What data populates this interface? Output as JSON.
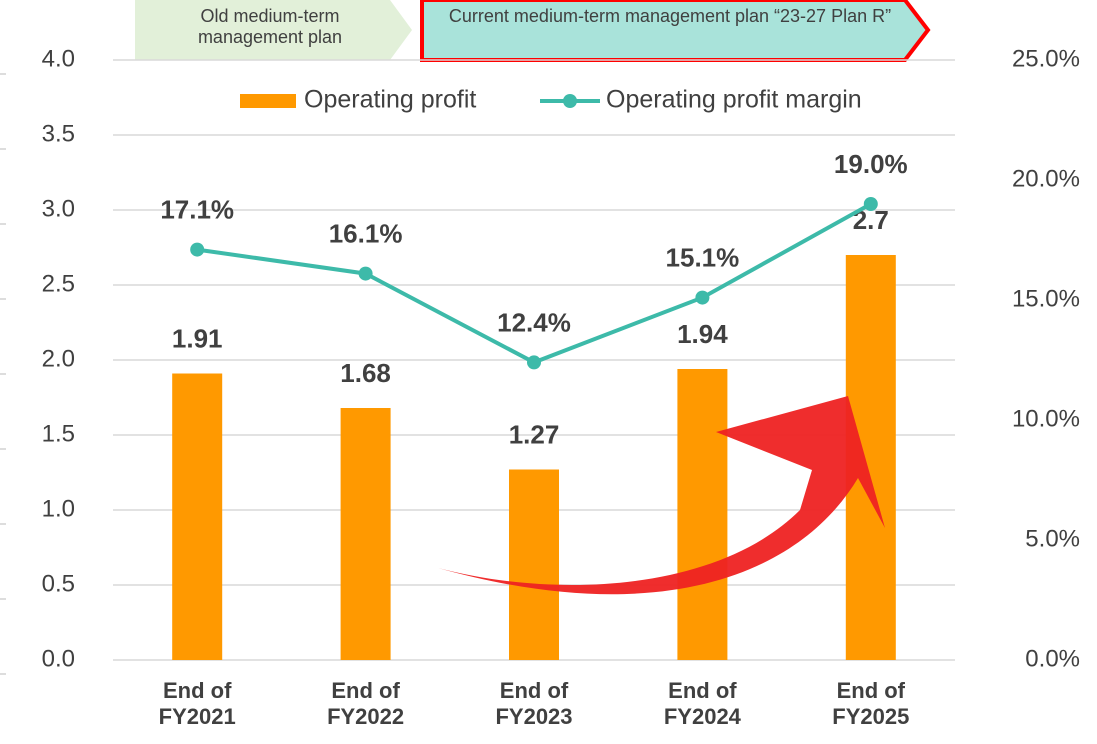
{
  "chart_data": {
    "type": "combo",
    "annotations": [
      "Old medium-term management plan",
      "Current medium-term management plan “23-27 Plan R”"
    ],
    "categories": [
      "End of FY2021",
      "End of FY2022",
      "End of FY2023",
      "End of FY2024",
      "End of FY2025"
    ],
    "series": [
      {
        "name": "Operating profit",
        "type": "bar",
        "color": "#ff9900",
        "values": [
          1.91,
          1.68,
          1.27,
          1.94,
          2.7
        ]
      },
      {
        "name": "Operating profit margin",
        "type": "line",
        "axis": "y2",
        "color": "#3dbaa9",
        "values": [
          17.1,
          16.1,
          12.4,
          15.1,
          19.0
        ],
        "value_labels": [
          "17.1%",
          "16.1%",
          "12.4%",
          "15.1%",
          "19.0%"
        ]
      }
    ],
    "ylim": [
      0,
      4
    ],
    "yticks": [
      {
        "value": 0,
        "label": "0.0"
      },
      {
        "value": 0.5,
        "label": "0.5"
      },
      {
        "value": 1,
        "label": "1.0"
      },
      {
        "value": 1.5,
        "label": "1.5"
      },
      {
        "value": 2,
        "label": "2.0"
      },
      {
        "value": 2.5,
        "label": "2.5"
      },
      {
        "value": 3,
        "label": "3.0"
      },
      {
        "value": 3.5,
        "label": "3.5"
      },
      {
        "value": 4,
        "label": "4.0"
      }
    ],
    "y2lim": [
      0,
      25
    ],
    "y2ticks": [
      {
        "value": 0,
        "label": "0.0%"
      },
      {
        "value": 5,
        "label": "5.0%"
      },
      {
        "value": 10,
        "label": "10.0%"
      },
      {
        "value": 15,
        "label": "15.0%"
      },
      {
        "value": 20,
        "label": "20.0%"
      },
      {
        "value": 25,
        "label": "25.0%"
      }
    ],
    "grid": true,
    "legend": "top"
  }
}
